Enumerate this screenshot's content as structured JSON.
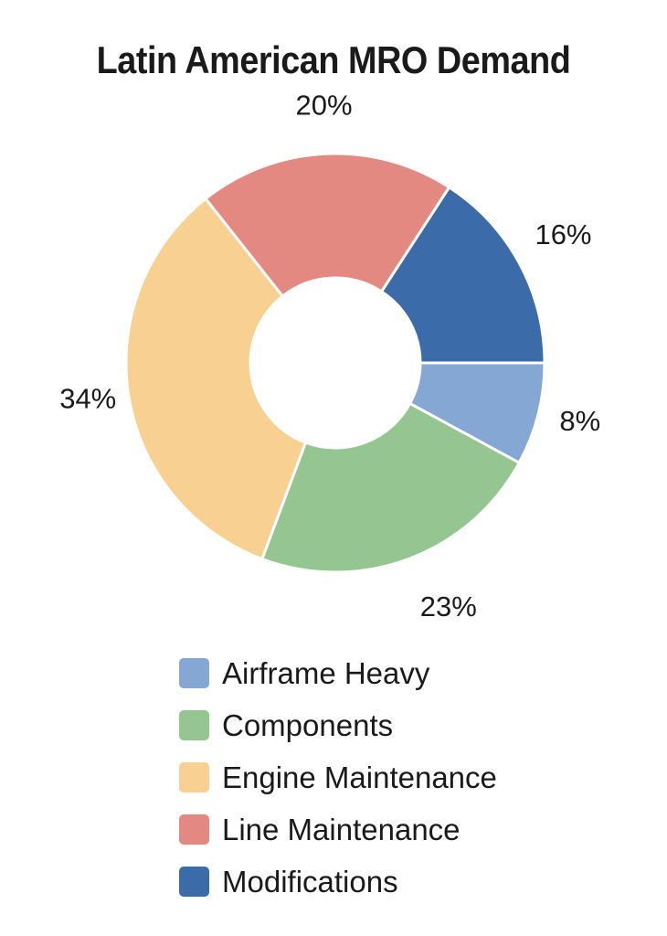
{
  "chart_data": {
    "type": "pie",
    "title": "Latin American MRO Demand",
    "donut": true,
    "legend_position": "bottom",
    "series": [
      {
        "name": "Airframe Heavy",
        "value": 8,
        "label": "8%",
        "color": "#84a7d4"
      },
      {
        "name": "Components",
        "value": 23,
        "label": "23%",
        "color": "#95c691"
      },
      {
        "name": "Engine Maintenance",
        "value": 34,
        "label": "34%",
        "color": "#f8d092"
      },
      {
        "name": "Line Maintenance",
        "value": 20,
        "label": "20%",
        "color": "#e48882"
      },
      {
        "name": "Modifications",
        "value": 16,
        "label": "16%",
        "color": "#3b6ba9"
      }
    ]
  }
}
